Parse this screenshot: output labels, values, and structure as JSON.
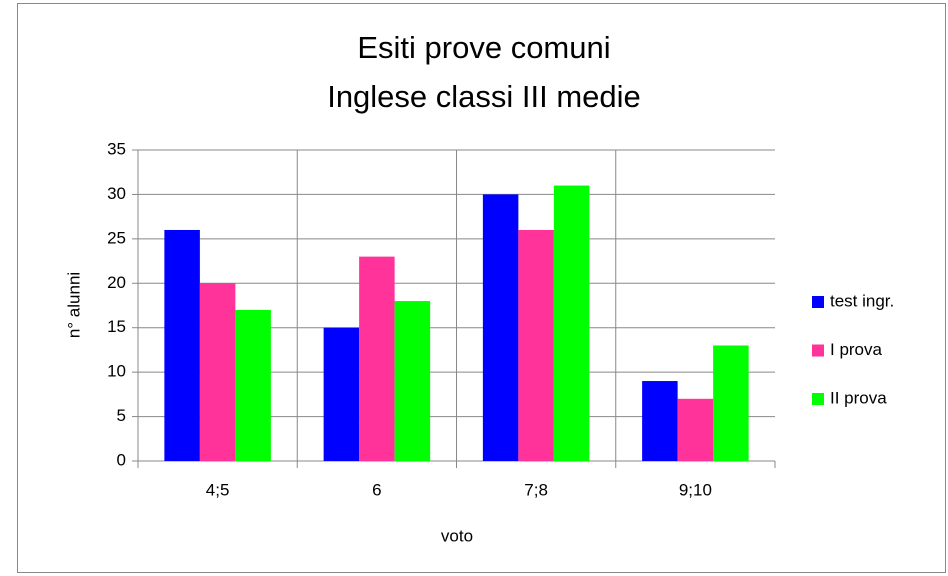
{
  "chart_data": {
    "type": "bar",
    "title": [
      "Esiti prove comuni",
      "Inglese classi III medie"
    ],
    "x_label": "voto",
    "y_label": "n° alunni",
    "categories": [
      "4;5",
      "6",
      "7;8",
      "9;10"
    ],
    "series": [
      {
        "name": "test ingr.",
        "color": "#0000ff",
        "values": [
          26,
          15,
          30,
          9
        ]
      },
      {
        "name": "I prova",
        "color": "#ff3399",
        "values": [
          20,
          23,
          26,
          7
        ]
      },
      {
        "name": "II prova",
        "color": "#00ff00",
        "values": [
          17,
          18,
          31,
          13
        ]
      }
    ],
    "ylim": [
      0,
      35
    ],
    "yticks": [
      0,
      5,
      10,
      15,
      20,
      25,
      30,
      35
    ],
    "grid": true,
    "legend": "right"
  }
}
